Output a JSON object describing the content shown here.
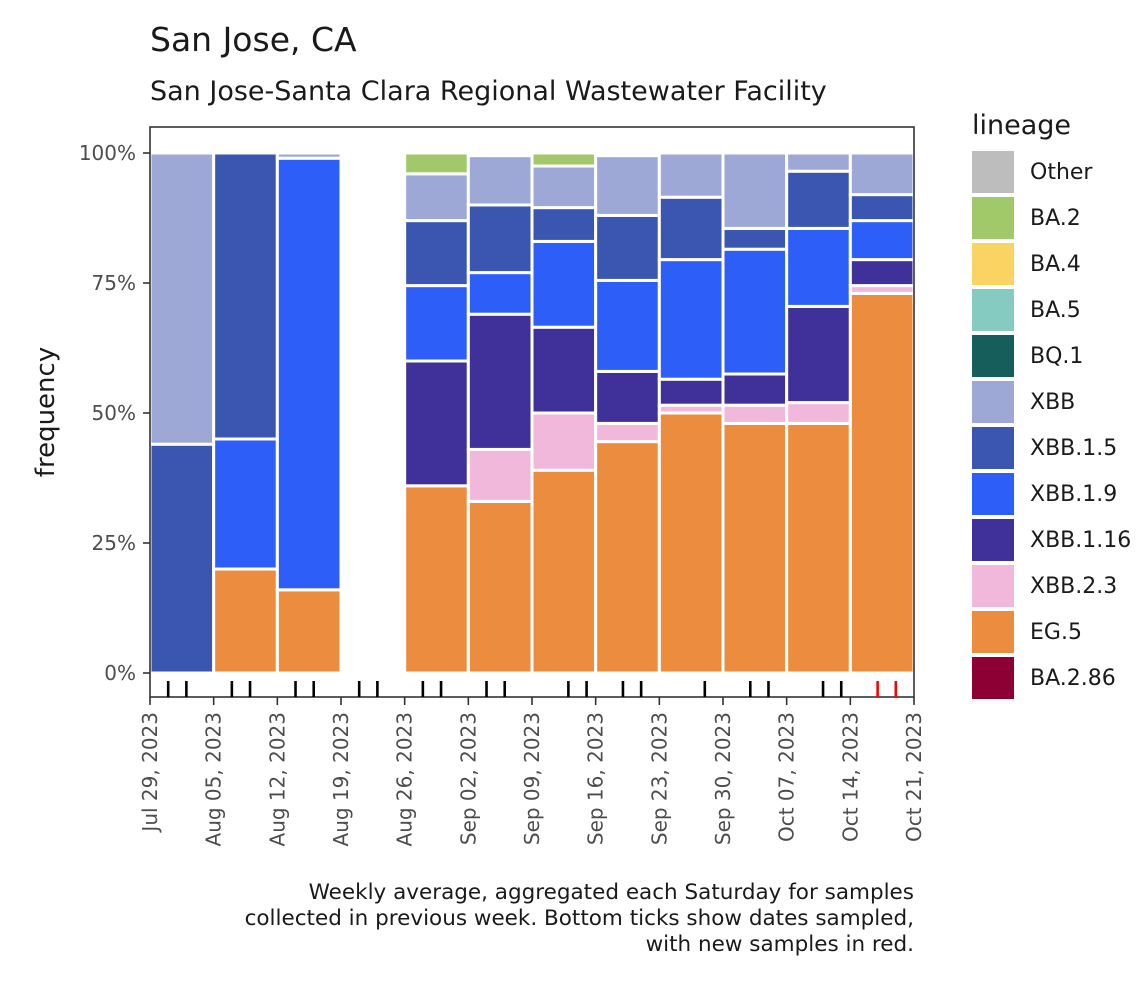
{
  "title": "San Jose, CA",
  "subtitle": "San Jose-Santa Clara Regional Wastewater Facility",
  "caption": [
    "Weekly average, aggregated each Saturday for samples",
    "collected in previous week. Bottom ticks show dates sampled,",
    "with new samples in red."
  ],
  "colors": {
    "Other": "#bdbdbd",
    "BA.2": "#a1c96a",
    "BA.4": "#fbd363",
    "BA.5": "#86cbc1",
    "BQ.1": "#155e5b",
    "XBB": "#9da8d6",
    "XBB.1.5": "#3a56b0",
    "XBB.1.9": "#2d5ef8",
    "XBB.1.16": "#40309a",
    "XBB.2.3": "#f1b8dc",
    "EG.5": "#ec8c3e",
    "BA.2.86": "#8c0033",
    "old_tick": "#000000",
    "new_tick": "#ff0000"
  },
  "chart_data": {
    "type": "bar",
    "stacked": true,
    "ylabel": "frequency",
    "xlabel": "",
    "ylim": [
      0,
      1
    ],
    "y_ticks": [
      {
        "value": 0,
        "label": "0%"
      },
      {
        "value": 0.25,
        "label": "25%"
      },
      {
        "value": 0.5,
        "label": "50%"
      },
      {
        "value": 0.75,
        "label": "75%"
      },
      {
        "value": 1,
        "label": "100%"
      }
    ],
    "x_range": [
      0,
      84
    ],
    "x_ticks": [
      {
        "day": 0,
        "label": "Jul 29, 2023"
      },
      {
        "day": 7,
        "label": "Aug 05, 2023"
      },
      {
        "day": 14,
        "label": "Aug 12, 2023"
      },
      {
        "day": 21,
        "label": "Aug 19, 2023"
      },
      {
        "day": 28,
        "label": "Aug 26, 2023"
      },
      {
        "day": 35,
        "label": "Sep 02, 2023"
      },
      {
        "day": 42,
        "label": "Sep 09, 2023"
      },
      {
        "day": 49,
        "label": "Sep 16, 2023"
      },
      {
        "day": 56,
        "label": "Sep 23, 2023"
      },
      {
        "day": 63,
        "label": "Sep 30, 2023"
      },
      {
        "day": 70,
        "label": "Oct 07, 2023"
      },
      {
        "day": 77,
        "label": "Oct 14, 2023"
      },
      {
        "day": 84,
        "label": "Oct 21, 2023"
      }
    ],
    "legend_title": "lineage",
    "legend_position": "right",
    "lineages": [
      "Other",
      "BA.2",
      "BA.4",
      "BA.5",
      "BQ.1",
      "XBB",
      "XBB.1.5",
      "XBB.1.9",
      "XBB.1.16",
      "XBB.2.3",
      "EG.5",
      "BA.2.86"
    ],
    "stack_order_bottom_to_top": [
      "EG.5",
      "XBB.2.3",
      "XBB.1.16",
      "XBB.1.9",
      "XBB.1.5",
      "XBB",
      "BA.4",
      "BA.2",
      "Other"
    ],
    "weeks": [
      {
        "end": "Jul 29, 2023",
        "start_day": 0,
        "end_day": 7,
        "values": {
          "XBB.1.5": 0.44,
          "XBB": 0.56
        }
      },
      {
        "end": "Aug 05, 2023",
        "start_day": 7,
        "end_day": 14,
        "values": {
          "EG.5": 0.2,
          "XBB.1.9": 0.25,
          "XBB.1.5": 0.55
        }
      },
      {
        "end": "Aug 12, 2023",
        "start_day": 14,
        "end_day": 21,
        "values": {
          "EG.5": 0.16,
          "XBB.1.9": 0.83,
          "XBB": 0.01
        }
      },
      {
        "end": "Aug 26, 2023",
        "start_day": 28,
        "end_day": 35,
        "values": {
          "EG.5": 0.36,
          "XBB.1.16": 0.24,
          "XBB.1.9": 0.145,
          "XBB.1.5": 0.125,
          "XBB": 0.09,
          "BA.2": 0.04
        }
      },
      {
        "end": "Sep 02, 2023",
        "start_day": 35,
        "end_day": 42,
        "values": {
          "EG.5": 0.33,
          "XBB.2.3": 0.1,
          "XBB.1.16": 0.26,
          "XBB.1.9": 0.08,
          "XBB.1.5": 0.13,
          "XBB": 0.095,
          "BA.2": 0.005
        }
      },
      {
        "end": "Sep 09, 2023",
        "start_day": 42,
        "end_day": 49,
        "values": {
          "EG.5": 0.39,
          "XBB.2.3": 0.11,
          "XBB.1.16": 0.165,
          "XBB.1.9": 0.165,
          "XBB.1.5": 0.065,
          "XBB": 0.08,
          "BA.2": 0.025
        }
      },
      {
        "end": "Sep 16, 2023",
        "start_day": 49,
        "end_day": 56,
        "values": {
          "EG.5": 0.445,
          "XBB.2.3": 0.035,
          "XBB.1.16": 0.1,
          "XBB.1.9": 0.175,
          "XBB.1.5": 0.125,
          "XBB": 0.115,
          "BA.4": 0.005
        }
      },
      {
        "end": "Sep 23, 2023",
        "start_day": 56,
        "end_day": 63,
        "values": {
          "EG.5": 0.5,
          "XBB.2.3": 0.015,
          "XBB.1.16": 0.05,
          "XBB.1.9": 0.23,
          "XBB.1.5": 0.12,
          "XBB": 0.085
        }
      },
      {
        "end": "Sep 30, 2023",
        "start_day": 63,
        "end_day": 70,
        "values": {
          "EG.5": 0.48,
          "XBB.2.3": 0.035,
          "XBB.1.16": 0.06,
          "XBB.1.9": 0.24,
          "XBB.1.5": 0.04,
          "XBB": 0.145
        }
      },
      {
        "end": "Oct 07, 2023",
        "start_day": 70,
        "end_day": 77,
        "values": {
          "EG.5": 0.48,
          "XBB.2.3": 0.04,
          "XBB.1.16": 0.185,
          "XBB.1.9": 0.15,
          "XBB.1.5": 0.11,
          "XBB": 0.035
        }
      },
      {
        "end": "Oct 14, 2023",
        "start_day": 77,
        "end_day": 84,
        "values": {
          "EG.5": 0.73,
          "XBB.2.3": 0.015,
          "XBB.1.16": 0.05,
          "XBB.1.9": 0.075,
          "XBB.1.5": 0.05,
          "XBB": 0.08
        }
      }
    ],
    "sample_days": [
      {
        "day": 2,
        "new": false
      },
      {
        "day": 4,
        "new": false
      },
      {
        "day": 9,
        "new": false
      },
      {
        "day": 11,
        "new": false
      },
      {
        "day": 16,
        "new": false
      },
      {
        "day": 18,
        "new": false
      },
      {
        "day": 23,
        "new": false
      },
      {
        "day": 25,
        "new": false
      },
      {
        "day": 30,
        "new": false
      },
      {
        "day": 32,
        "new": false
      },
      {
        "day": 37,
        "new": false
      },
      {
        "day": 39,
        "new": false
      },
      {
        "day": 46,
        "new": false
      },
      {
        "day": 48,
        "new": false
      },
      {
        "day": 52,
        "new": false
      },
      {
        "day": 54,
        "new": false
      },
      {
        "day": 61,
        "new": false
      },
      {
        "day": 66,
        "new": false
      },
      {
        "day": 68,
        "new": false
      },
      {
        "day": 74,
        "new": false
      },
      {
        "day": 76,
        "new": false
      },
      {
        "day": 80,
        "new": true
      },
      {
        "day": 82,
        "new": true
      }
    ]
  }
}
